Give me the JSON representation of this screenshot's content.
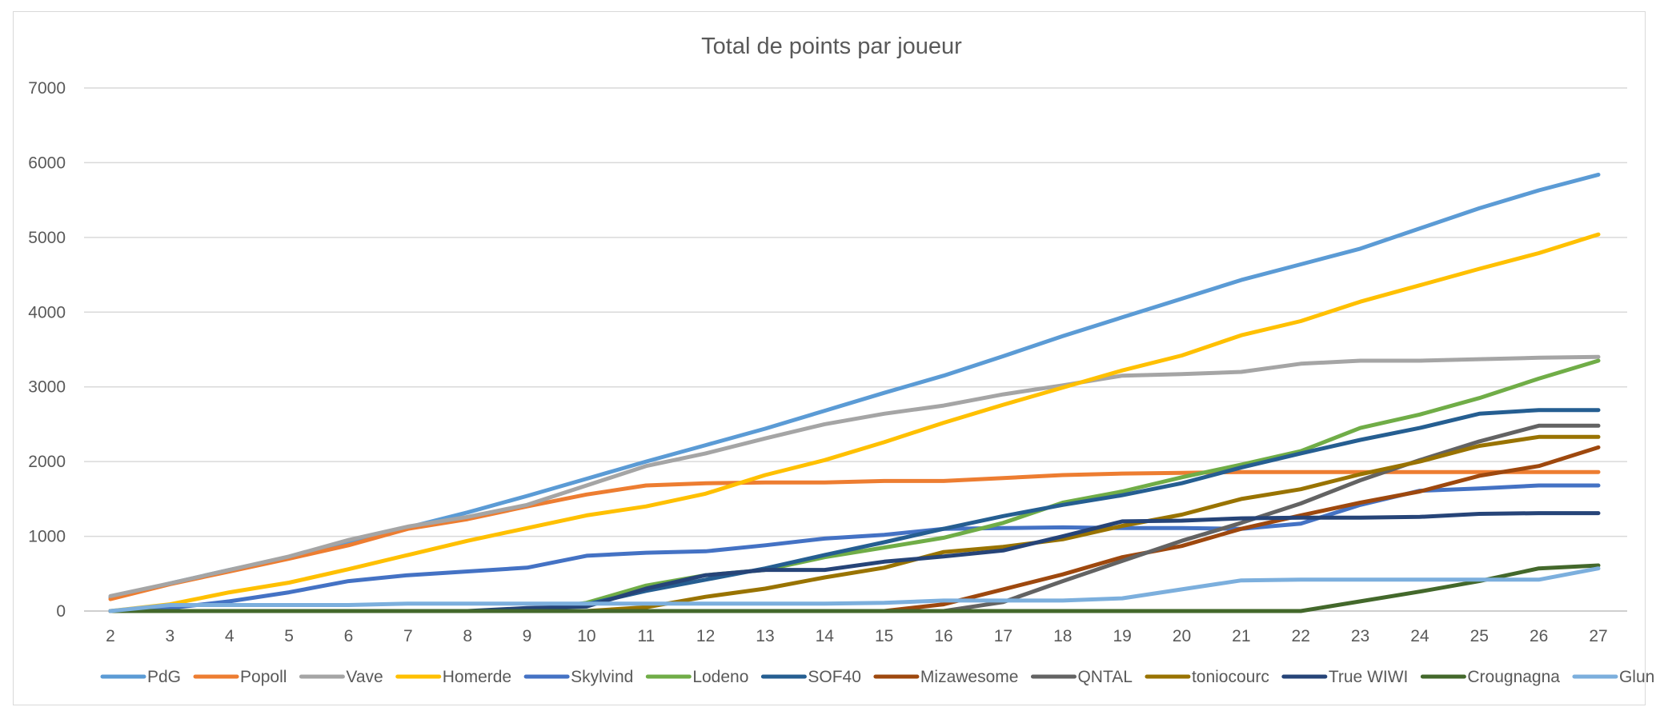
{
  "chart_data": {
    "type": "line",
    "title": "Total de points par joueur",
    "xlabel": "",
    "ylabel": "",
    "x": [
      2,
      3,
      4,
      5,
      6,
      7,
      8,
      9,
      10,
      11,
      12,
      13,
      14,
      15,
      16,
      17,
      18,
      19,
      20,
      21,
      22,
      23,
      24,
      25,
      26,
      27
    ],
    "ylim": [
      0,
      7000
    ],
    "yticks": [
      0,
      1000,
      2000,
      3000,
      4000,
      5000,
      6000,
      7000
    ],
    "grid": true,
    "legend_position": "bottom",
    "series": [
      {
        "name": "PdG",
        "color": "#5B9BD5",
        "values": [
          180,
          370,
          550,
          720,
          920,
          1120,
          1320,
          1540,
          1770,
          2000,
          2220,
          2440,
          2680,
          2920,
          3150,
          3410,
          3680,
          3930,
          4180,
          4430,
          4640,
          4850,
          5120,
          5390,
          5630,
          5840
        ]
      },
      {
        "name": "Popoll",
        "color": "#ED7D31",
        "values": [
          160,
          360,
          530,
          700,
          880,
          1100,
          1230,
          1400,
          1560,
          1680,
          1710,
          1720,
          1720,
          1740,
          1740,
          1780,
          1820,
          1840,
          1850,
          1860,
          1860,
          1860,
          1860,
          1860,
          1860,
          1860
        ]
      },
      {
        "name": "Vave",
        "color": "#A5A5A5",
        "values": [
          200,
          370,
          550,
          730,
          950,
          1130,
          1260,
          1420,
          1680,
          1940,
          2110,
          2310,
          2500,
          2640,
          2750,
          2900,
          3020,
          3150,
          3170,
          3200,
          3310,
          3350,
          3350,
          3370,
          3390,
          3400
        ]
      },
      {
        "name": "Homerde",
        "color": "#FFC000",
        "values": [
          0,
          90,
          250,
          380,
          560,
          750,
          940,
          1110,
          1280,
          1400,
          1570,
          1820,
          2020,
          2260,
          2520,
          2760,
          2990,
          3220,
          3420,
          3690,
          3880,
          4140,
          4360,
          4580,
          4790,
          5040
        ]
      },
      {
        "name": "Skylvind",
        "color": "#4472C4",
        "values": [
          0,
          40,
          130,
          250,
          400,
          480,
          530,
          580,
          740,
          780,
          800,
          880,
          970,
          1020,
          1100,
          1110,
          1120,
          1110,
          1110,
          1100,
          1170,
          1420,
          1610,
          1640,
          1680,
          1680
        ]
      },
      {
        "name": "Lodeno",
        "color": "#70AD47",
        "values": [
          0,
          0,
          0,
          0,
          0,
          0,
          0,
          0,
          110,
          340,
          480,
          550,
          720,
          850,
          980,
          1180,
          1450,
          1600,
          1790,
          1960,
          2140,
          2450,
          2630,
          2850,
          3110,
          3350
        ]
      },
      {
        "name": "SOF40",
        "color": "#255E91",
        "values": [
          0,
          0,
          0,
          0,
          0,
          0,
          0,
          0,
          90,
          270,
          420,
          570,
          750,
          920,
          1100,
          1270,
          1420,
          1550,
          1710,
          1920,
          2110,
          2290,
          2450,
          2640,
          2690,
          2690
        ]
      },
      {
        "name": "Mizawesome",
        "color": "#9E480E",
        "values": [
          0,
          0,
          0,
          0,
          0,
          0,
          0,
          0,
          0,
          0,
          0,
          0,
          0,
          0,
          90,
          290,
          490,
          720,
          870,
          1100,
          1280,
          1450,
          1600,
          1810,
          1940,
          2190
        ]
      },
      {
        "name": "QNTAL",
        "color": "#636363",
        "values": [
          0,
          0,
          0,
          0,
          0,
          0,
          0,
          0,
          0,
          0,
          0,
          0,
          0,
          0,
          0,
          120,
          400,
          670,
          940,
          1180,
          1440,
          1750,
          2020,
          2270,
          2480,
          2480
        ]
      },
      {
        "name": "toniocourc",
        "color": "#997300",
        "values": [
          0,
          0,
          0,
          0,
          0,
          0,
          0,
          0,
          0,
          50,
          190,
          300,
          450,
          580,
          790,
          860,
          960,
          1140,
          1290,
          1500,
          1630,
          1830,
          2000,
          2210,
          2330,
          2330
        ]
      },
      {
        "name": "True WIWI",
        "color": "#264478",
        "values": [
          0,
          0,
          0,
          0,
          0,
          0,
          0,
          40,
          60,
          300,
          480,
          550,
          550,
          660,
          730,
          810,
          1000,
          1200,
          1210,
          1240,
          1250,
          1250,
          1260,
          1300,
          1310,
          1310
        ]
      },
      {
        "name": "Crougnagna",
        "color": "#43682B",
        "values": [
          0,
          0,
          0,
          0,
          0,
          0,
          0,
          0,
          0,
          0,
          0,
          0,
          0,
          0,
          0,
          0,
          0,
          0,
          0,
          0,
          0,
          130,
          260,
          400,
          570,
          610
        ]
      },
      {
        "name": "Glun",
        "color": "#7CAFDD",
        "values": [
          0,
          80,
          80,
          80,
          80,
          100,
          100,
          100,
          100,
          100,
          100,
          100,
          100,
          110,
          140,
          140,
          140,
          170,
          290,
          410,
          420,
          420,
          420,
          420,
          420,
          570
        ]
      }
    ]
  }
}
